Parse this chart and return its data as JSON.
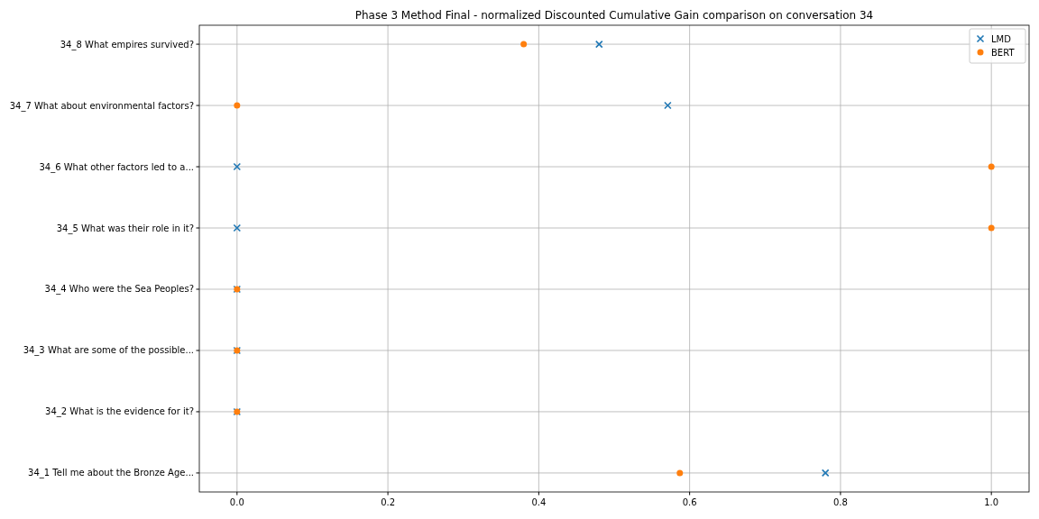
{
  "chart_data": {
    "type": "scatter",
    "orientation": "horizontal",
    "title": "Phase 3 Method Final - normalized Discounted Cumulative Gain comparison on conversation 34",
    "categories": [
      "34_8 What empires survived?",
      "34_7 What about environmental factors?",
      "34_6 What other factors led to a...",
      "34_5 What was their role in it?",
      "34_4 Who were the Sea Peoples?",
      "34_3 What are some of the possible...",
      "34_2 What is the evidence for it?",
      "34_1 Tell me about the Bronze Age..."
    ],
    "series": [
      {
        "name": "LMD",
        "color": "#1f77b4",
        "marker": "cross",
        "values": [
          0.48,
          0.571,
          0,
          0,
          0,
          0,
          0,
          0.78
        ]
      },
      {
        "name": "BERT",
        "color": "#ff7f0e",
        "marker": "circle",
        "values": [
          0.38,
          0,
          1,
          1,
          0,
          0,
          0,
          0.587
        ]
      }
    ],
    "xlim": [
      -0.05,
      1.05
    ],
    "xticks": [
      {
        "value": 0,
        "label": "0.0"
      },
      {
        "value": 0.2,
        "label": "0.2"
      },
      {
        "value": 0.4,
        "label": "0.4"
      },
      {
        "value": 0.6,
        "label": "0.6"
      },
      {
        "value": 0.8,
        "label": "0.8"
      },
      {
        "value": 1,
        "label": "1.0"
      }
    ],
    "grid": true,
    "legend": "top right"
  }
}
